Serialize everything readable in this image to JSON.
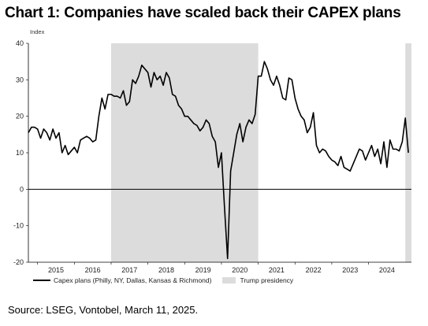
{
  "title": "Chart 1: Companies have scaled back their CAPEX plans",
  "source": "Source: LSEG, Vontobel, March 11, 2025.",
  "chart_data": {
    "type": "line",
    "title": "Chart 1: Companies have scaled back their CAPEX plans",
    "ylabel": "Index",
    "xlabel": "",
    "ylim": [
      -20,
      40
    ],
    "xlim": [
      "2014-10",
      "2025-03"
    ],
    "yticks": [
      "40",
      "30",
      "20",
      "10",
      "0",
      "-10",
      "-20"
    ],
    "xticks": [
      "2015",
      "2016",
      "2017",
      "2018",
      "2019",
      "2020",
      "2021",
      "2022",
      "2023",
      "2024"
    ],
    "grid": false,
    "legend_position": "bottom",
    "colors": {
      "line": "#000000",
      "shade": "#dcdcdc",
      "zero_line": "#000000"
    },
    "shaded_regions": [
      {
        "name": "Trump presidency",
        "start": "2017-01",
        "end": "2021-01"
      },
      {
        "name": "Trump presidency",
        "start": "2025-01",
        "end": "2025-03"
      }
    ],
    "legend": [
      {
        "label": "Capex plans (Philly, NY, Dallas, Kansas & Richmond)",
        "kind": "line"
      },
      {
        "label": "Trump presidency",
        "kind": "area"
      }
    ],
    "series": [
      {
        "name": "Capex plans (Philly, NY, Dallas, Kansas & Richmond)",
        "x": [
          "2014-10",
          "2014-11",
          "2014-12",
          "2015-01",
          "2015-02",
          "2015-03",
          "2015-04",
          "2015-05",
          "2015-06",
          "2015-07",
          "2015-08",
          "2015-09",
          "2015-10",
          "2015-11",
          "2015-12",
          "2016-01",
          "2016-02",
          "2016-03",
          "2016-04",
          "2016-05",
          "2016-06",
          "2016-07",
          "2016-08",
          "2016-09",
          "2016-10",
          "2016-11",
          "2016-12",
          "2017-01",
          "2017-02",
          "2017-03",
          "2017-04",
          "2017-05",
          "2017-06",
          "2017-07",
          "2017-08",
          "2017-09",
          "2017-10",
          "2017-11",
          "2017-12",
          "2018-01",
          "2018-02",
          "2018-03",
          "2018-04",
          "2018-05",
          "2018-06",
          "2018-07",
          "2018-08",
          "2018-09",
          "2018-10",
          "2018-11",
          "2018-12",
          "2019-01",
          "2019-02",
          "2019-03",
          "2019-04",
          "2019-05",
          "2019-06",
          "2019-07",
          "2019-08",
          "2019-09",
          "2019-10",
          "2019-11",
          "2019-12",
          "2020-01",
          "2020-02",
          "2020-03",
          "2020-04",
          "2020-05",
          "2020-06",
          "2020-07",
          "2020-08",
          "2020-09",
          "2020-10",
          "2020-11",
          "2020-12",
          "2021-01",
          "2021-02",
          "2021-03",
          "2021-04",
          "2021-05",
          "2021-06",
          "2021-07",
          "2021-08",
          "2021-09",
          "2021-10",
          "2021-11",
          "2021-12",
          "2022-01",
          "2022-02",
          "2022-03",
          "2022-04",
          "2022-05",
          "2022-06",
          "2022-07",
          "2022-08",
          "2022-09",
          "2022-10",
          "2022-11",
          "2022-12",
          "2023-01",
          "2023-02",
          "2023-03",
          "2023-04",
          "2023-05",
          "2023-06",
          "2023-07",
          "2023-08",
          "2023-09",
          "2023-10",
          "2023-11",
          "2023-12",
          "2024-01",
          "2024-02",
          "2024-03",
          "2024-04",
          "2024-05",
          "2024-06",
          "2024-07",
          "2024-08",
          "2024-09",
          "2024-10",
          "2024-11",
          "2024-12",
          "2025-01",
          "2025-02"
        ],
        "values": [
          15.5,
          17,
          17,
          16.5,
          14,
          16.5,
          15.5,
          13.5,
          16.5,
          14,
          15.5,
          10,
          12,
          9.5,
          10.5,
          11.5,
          10,
          13.5,
          14,
          14.5,
          14,
          13,
          13.5,
          20,
          25,
          22,
          26,
          26,
          25.5,
          25.5,
          25,
          27,
          23,
          24,
          30,
          29,
          31,
          34,
          33,
          32,
          28,
          32,
          30,
          31,
          28.5,
          32,
          30.5,
          26,
          25.5,
          23,
          22,
          20,
          20,
          19,
          18,
          17.5,
          16,
          17,
          19,
          18,
          14.5,
          13,
          6,
          10,
          -5,
          -19,
          5,
          10,
          15,
          18,
          13,
          17,
          19,
          18,
          20.5,
          31,
          31,
          35,
          33,
          30,
          28.5,
          31,
          28.5,
          25,
          24.5,
          30.5,
          30,
          25,
          22,
          20,
          19,
          15.5,
          17,
          21,
          12,
          10,
          11,
          10.5,
          9,
          8,
          7.5,
          6.5,
          9,
          6,
          5.5,
          5,
          7,
          9,
          11,
          10.5,
          8,
          10,
          12,
          9,
          11,
          7,
          13,
          6,
          13.5,
          11,
          11,
          10.5,
          13,
          19.5,
          10
        ]
      }
    ]
  }
}
